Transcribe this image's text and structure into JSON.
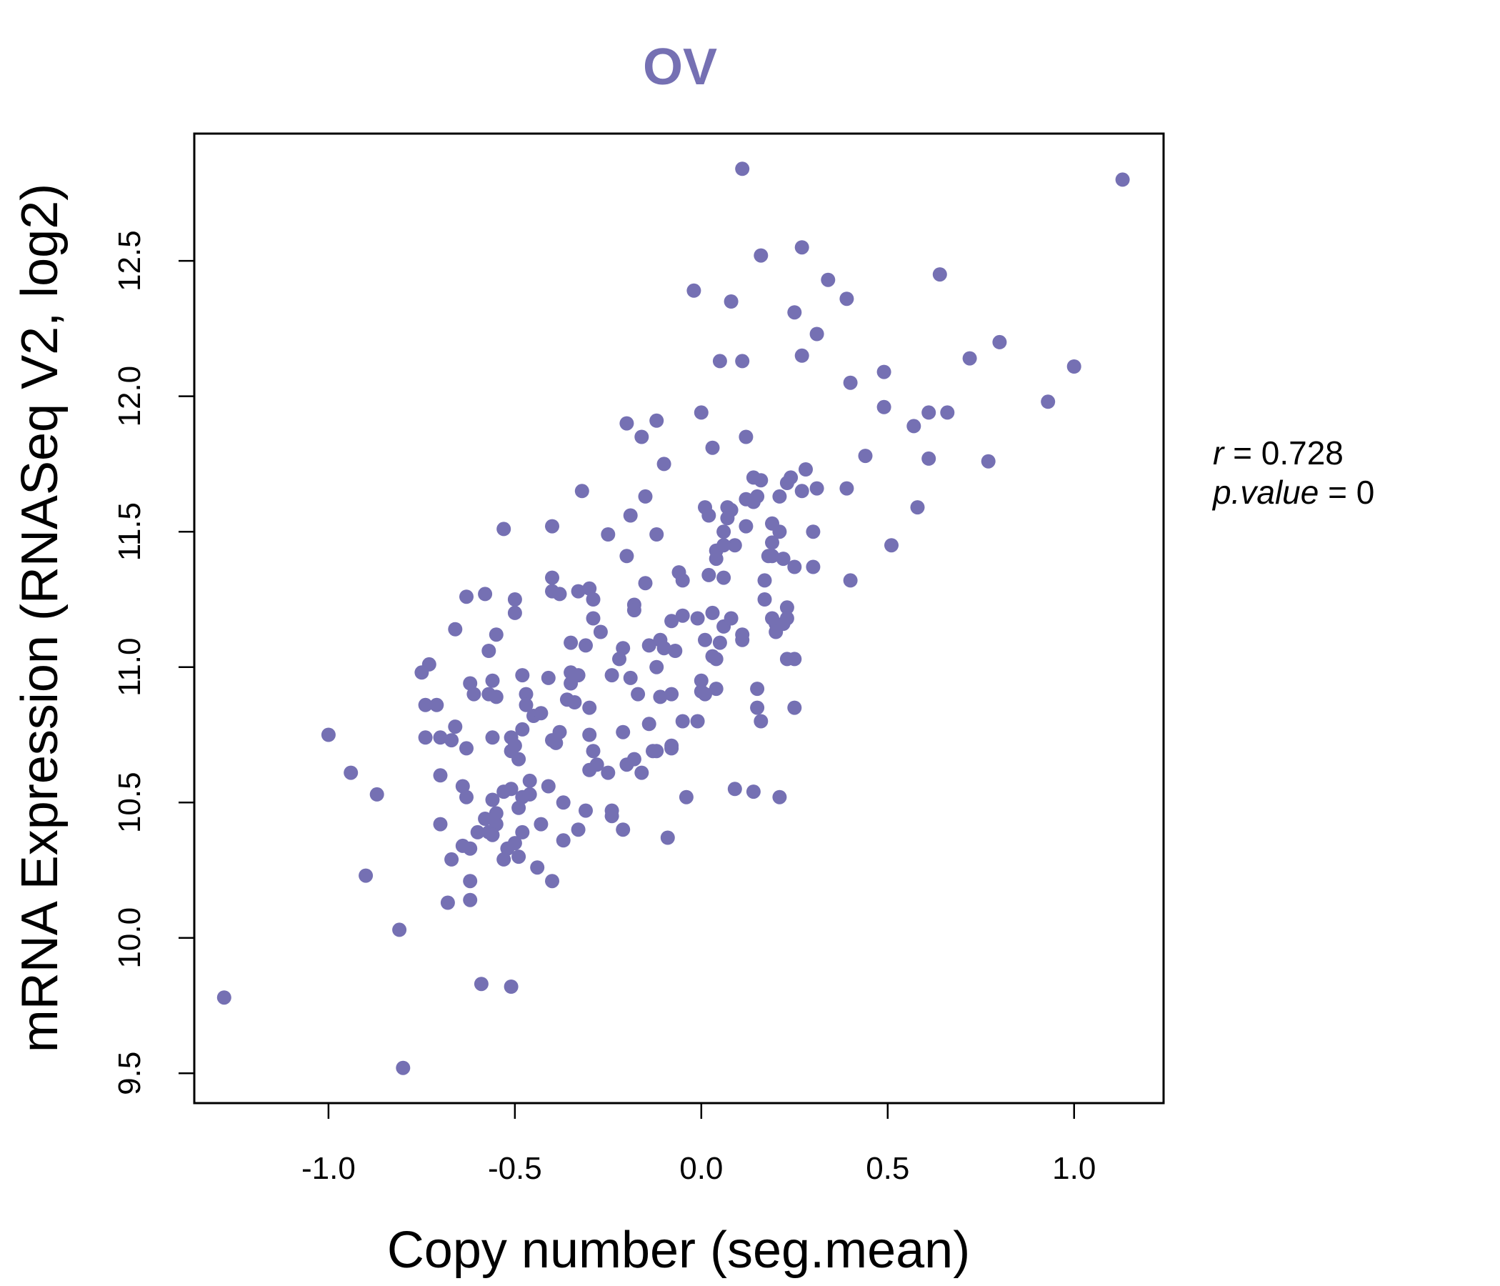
{
  "chart_data": {
    "type": "scatter",
    "title": "OV",
    "xlabel": "Copy number (seg.mean)",
    "ylabel": "mRNA Expression (RNASeq V2, log2)",
    "xlim": [
      -1.36,
      1.24
    ],
    "ylim": [
      9.39,
      12.97
    ],
    "xticks": [
      -1.0,
      -0.5,
      0.0,
      0.5,
      1.0
    ],
    "xtick_labels": [
      "-1.0",
      "-0.5",
      "0.0",
      "0.5",
      "1.0"
    ],
    "yticks": [
      9.5,
      10.0,
      10.5,
      11.0,
      11.5,
      12.0,
      12.5
    ],
    "ytick_labels": [
      "9.5",
      "10.0",
      "10.5",
      "11.0",
      "11.5",
      "12.0",
      "12.5"
    ],
    "point_color": "#7570b3",
    "stats": {
      "r_label": "r",
      "r_value": "0.728",
      "p_label": "p.value",
      "p_value": "0"
    },
    "points": [
      [
        -1.28,
        9.78
      ],
      [
        -0.8,
        9.52
      ],
      [
        -0.81,
        10.03
      ],
      [
        -0.59,
        9.83
      ],
      [
        -0.51,
        9.82
      ],
      [
        -1.0,
        10.75
      ],
      [
        -0.94,
        10.61
      ],
      [
        -0.87,
        10.53
      ],
      [
        -0.9,
        10.23
      ],
      [
        -0.73,
        11.01
      ],
      [
        -0.75,
        10.98
      ],
      [
        -0.74,
        10.86
      ],
      [
        -0.71,
        10.86
      ],
      [
        -0.74,
        10.74
      ],
      [
        -0.7,
        10.74
      ],
      [
        -0.67,
        10.73
      ],
      [
        -0.7,
        10.6
      ],
      [
        -0.7,
        10.42
      ],
      [
        -0.67,
        10.29
      ],
      [
        -0.68,
        10.13
      ],
      [
        -0.66,
        11.14
      ],
      [
        -0.63,
        11.26
      ],
      [
        -0.58,
        11.27
      ],
      [
        -0.55,
        11.12
      ],
      [
        -0.57,
        11.06
      ],
      [
        -0.62,
        10.94
      ],
      [
        -0.61,
        10.9
      ],
      [
        -0.56,
        10.95
      ],
      [
        -0.57,
        10.9
      ],
      [
        -0.55,
        10.89
      ],
      [
        -0.66,
        10.78
      ],
      [
        -0.63,
        10.7
      ],
      [
        -0.56,
        10.74
      ],
      [
        -0.64,
        10.56
      ],
      [
        -0.63,
        10.52
      ],
      [
        -0.6,
        10.39
      ],
      [
        -0.58,
        10.44
      ],
      [
        -0.56,
        10.51
      ],
      [
        -0.55,
        10.46
      ],
      [
        -0.57,
        10.39
      ],
      [
        -0.62,
        10.33
      ],
      [
        -0.64,
        10.34
      ],
      [
        -0.62,
        10.21
      ],
      [
        -0.62,
        10.14
      ],
      [
        -0.53,
        11.51
      ],
      [
        -0.5,
        11.25
      ],
      [
        -0.5,
        11.2
      ],
      [
        -0.48,
        10.97
      ],
      [
        -0.47,
        10.9
      ],
      [
        -0.47,
        10.86
      ],
      [
        -0.45,
        10.82
      ],
      [
        -0.43,
        10.83
      ],
      [
        -0.48,
        10.77
      ],
      [
        -0.51,
        10.74
      ],
      [
        -0.5,
        10.71
      ],
      [
        -0.51,
        10.69
      ],
      [
        -0.49,
        10.66
      ],
      [
        -0.53,
        10.54
      ],
      [
        -0.51,
        10.55
      ],
      [
        -0.48,
        10.52
      ],
      [
        -0.46,
        10.58
      ],
      [
        -0.46,
        10.53
      ],
      [
        -0.49,
        10.48
      ],
      [
        -0.55,
        10.42
      ],
      [
        -0.56,
        10.38
      ],
      [
        -0.52,
        10.33
      ],
      [
        -0.53,
        10.29
      ],
      [
        -0.5,
        10.35
      ],
      [
        -0.48,
        10.39
      ],
      [
        -0.49,
        10.3
      ],
      [
        -0.44,
        10.26
      ],
      [
        -0.43,
        10.42
      ],
      [
        -0.4,
        11.52
      ],
      [
        -0.4,
        11.33
      ],
      [
        -0.4,
        11.28
      ],
      [
        -0.38,
        11.27
      ],
      [
        -0.35,
        11.09
      ],
      [
        -0.41,
        10.96
      ],
      [
        -0.35,
        10.98
      ],
      [
        -0.33,
        10.97
      ],
      [
        -0.35,
        10.94
      ],
      [
        -0.36,
        10.88
      ],
      [
        -0.34,
        10.87
      ],
      [
        -0.38,
        10.76
      ],
      [
        -0.39,
        10.72
      ],
      [
        -0.4,
        10.73
      ],
      [
        -0.41,
        10.56
      ],
      [
        -0.37,
        10.5
      ],
      [
        -0.33,
        10.4
      ],
      [
        -0.37,
        10.36
      ],
      [
        -0.4,
        10.21
      ],
      [
        -0.32,
        11.65
      ],
      [
        -0.33,
        11.28
      ],
      [
        -0.3,
        11.29
      ],
      [
        -0.29,
        11.25
      ],
      [
        -0.29,
        11.18
      ],
      [
        -0.27,
        11.13
      ],
      [
        -0.31,
        11.08
      ],
      [
        -0.3,
        10.85
      ],
      [
        -0.3,
        10.75
      ],
      [
        -0.29,
        10.69
      ],
      [
        -0.3,
        10.62
      ],
      [
        -0.28,
        10.64
      ],
      [
        -0.25,
        10.61
      ],
      [
        -0.31,
        10.47
      ],
      [
        -0.24,
        10.47
      ],
      [
        -0.24,
        10.45
      ],
      [
        -0.21,
        10.4
      ],
      [
        -0.2,
        11.9
      ],
      [
        -0.16,
        11.85
      ],
      [
        -0.25,
        11.49
      ],
      [
        -0.19,
        11.56
      ],
      [
        -0.2,
        11.41
      ],
      [
        -0.18,
        11.23
      ],
      [
        -0.18,
        11.21
      ],
      [
        -0.15,
        11.31
      ],
      [
        -0.21,
        11.07
      ],
      [
        -0.22,
        11.03
      ],
      [
        -0.24,
        10.97
      ],
      [
        -0.19,
        10.96
      ],
      [
        -0.17,
        10.9
      ],
      [
        -0.14,
        10.79
      ],
      [
        -0.21,
        10.76
      ],
      [
        -0.2,
        10.64
      ],
      [
        -0.18,
        10.66
      ],
      [
        -0.16,
        10.61
      ],
      [
        -0.12,
        11.91
      ],
      [
        -0.1,
        11.75
      ],
      [
        -0.15,
        11.63
      ],
      [
        -0.12,
        11.49
      ],
      [
        -0.14,
        11.08
      ],
      [
        -0.11,
        11.1
      ],
      [
        -0.1,
        11.07
      ],
      [
        -0.12,
        11.0
      ],
      [
        -0.07,
        11.06
      ],
      [
        -0.08,
        11.17
      ],
      [
        -0.11,
        10.89
      ],
      [
        -0.08,
        10.9
      ],
      [
        -0.13,
        10.69
      ],
      [
        -0.12,
        10.69
      ],
      [
        -0.08,
        10.71
      ],
      [
        -0.08,
        10.7
      ],
      [
        -0.09,
        10.37
      ],
      [
        -0.02,
        12.39
      ],
      [
        0.0,
        11.94
      ],
      [
        0.03,
        11.81
      ],
      [
        0.01,
        11.59
      ],
      [
        0.02,
        11.56
      ],
      [
        -0.06,
        11.35
      ],
      [
        -0.05,
        11.32
      ],
      [
        0.02,
        11.34
      ],
      [
        0.04,
        11.4
      ],
      [
        0.04,
        11.43
      ],
      [
        -0.05,
        11.19
      ],
      [
        -0.01,
        11.18
      ],
      [
        0.03,
        11.2
      ],
      [
        0.06,
        11.15
      ],
      [
        0.01,
        11.1
      ],
      [
        0.03,
        11.04
      ],
      [
        0.04,
        11.03
      ],
      [
        0.05,
        11.09
      ],
      [
        0.0,
        10.95
      ],
      [
        0.0,
        10.91
      ],
      [
        0.01,
        10.9
      ],
      [
        0.04,
        10.92
      ],
      [
        -0.05,
        10.8
      ],
      [
        -0.01,
        10.8
      ],
      [
        -0.04,
        10.52
      ],
      [
        0.08,
        12.35
      ],
      [
        0.05,
        12.13
      ],
      [
        0.11,
        12.13
      ],
      [
        0.12,
        11.85
      ],
      [
        0.07,
        11.59
      ],
      [
        0.08,
        11.58
      ],
      [
        0.07,
        11.55
      ],
      [
        0.06,
        11.5
      ],
      [
        0.09,
        11.45
      ],
      [
        0.06,
        11.45
      ],
      [
        0.12,
        11.52
      ],
      [
        0.12,
        11.62
      ],
      [
        0.14,
        11.61
      ],
      [
        0.15,
        11.63
      ],
      [
        0.14,
        11.7
      ],
      [
        0.06,
        11.33
      ],
      [
        0.08,
        11.18
      ],
      [
        0.11,
        11.12
      ],
      [
        0.11,
        11.1
      ],
      [
        0.09,
        10.55
      ],
      [
        0.11,
        12.84
      ],
      [
        0.16,
        12.52
      ],
      [
        0.16,
        11.69
      ],
      [
        0.27,
        12.55
      ],
      [
        0.25,
        12.31
      ],
      [
        0.34,
        12.43
      ],
      [
        0.31,
        12.23
      ],
      [
        0.27,
        12.15
      ],
      [
        0.39,
        12.36
      ],
      [
        0.21,
        11.63
      ],
      [
        0.24,
        11.7
      ],
      [
        0.23,
        11.68
      ],
      [
        0.28,
        11.73
      ],
      [
        0.27,
        11.65
      ],
      [
        0.31,
        11.66
      ],
      [
        0.19,
        11.53
      ],
      [
        0.21,
        11.5
      ],
      [
        0.3,
        11.5
      ],
      [
        0.19,
        11.46
      ],
      [
        0.19,
        11.41
      ],
      [
        0.18,
        11.41
      ],
      [
        0.22,
        11.4
      ],
      [
        0.25,
        11.37
      ],
      [
        0.3,
        11.37
      ],
      [
        0.17,
        11.32
      ],
      [
        0.17,
        11.25
      ],
      [
        0.23,
        11.22
      ],
      [
        0.19,
        11.18
      ],
      [
        0.23,
        11.18
      ],
      [
        0.2,
        11.16
      ],
      [
        0.22,
        11.16
      ],
      [
        0.2,
        11.13
      ],
      [
        0.23,
        11.03
      ],
      [
        0.25,
        11.03
      ],
      [
        0.15,
        10.92
      ],
      [
        0.15,
        10.85
      ],
      [
        0.16,
        10.8
      ],
      [
        0.25,
        10.85
      ],
      [
        0.14,
        10.54
      ],
      [
        0.21,
        10.52
      ],
      [
        0.4,
        12.05
      ],
      [
        0.49,
        12.09
      ],
      [
        0.49,
        11.96
      ],
      [
        0.57,
        11.89
      ],
      [
        0.61,
        11.94
      ],
      [
        0.44,
        11.78
      ],
      [
        0.39,
        11.66
      ],
      [
        0.61,
        11.77
      ],
      [
        0.58,
        11.59
      ],
      [
        0.51,
        11.45
      ],
      [
        0.4,
        11.32
      ],
      [
        0.64,
        12.45
      ],
      [
        0.66,
        11.94
      ],
      [
        0.72,
        12.14
      ],
      [
        0.8,
        12.2
      ],
      [
        0.77,
        11.76
      ],
      [
        0.93,
        11.98
      ],
      [
        1.0,
        12.11
      ],
      [
        1.13,
        12.8
      ]
    ]
  }
}
